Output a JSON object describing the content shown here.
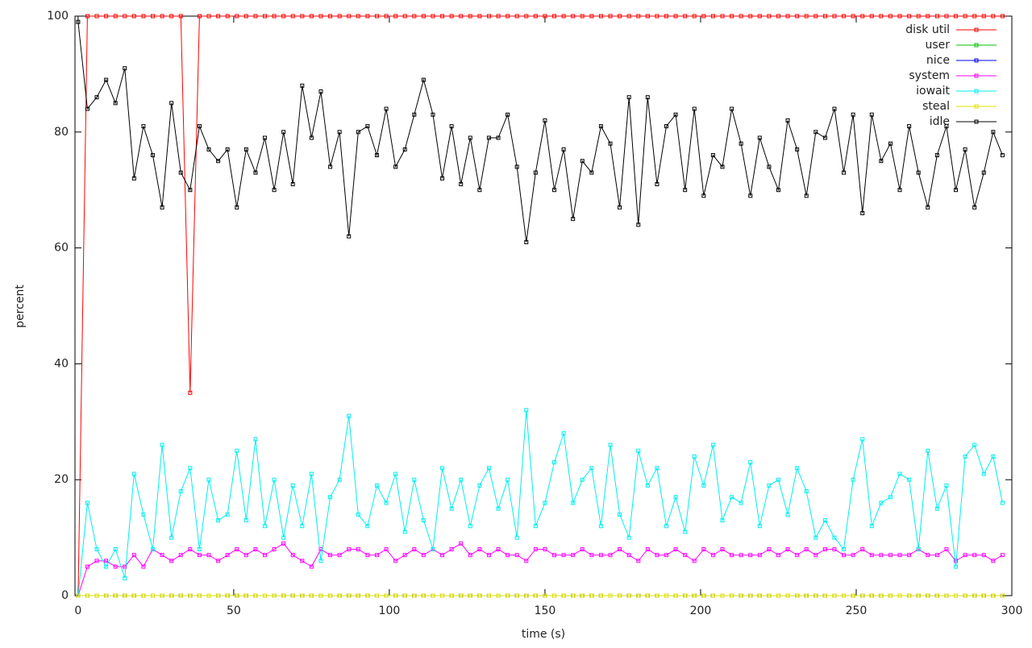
{
  "chart_data": {
    "type": "line",
    "xlabel": "time (s)",
    "ylabel": "percent",
    "xlim": [
      -1,
      300
    ],
    "xticks": [
      0,
      50,
      100,
      150,
      200,
      250,
      300
    ],
    "ylim": [
      0,
      100
    ],
    "yticks": [
      0,
      20,
      40,
      60,
      80,
      100
    ],
    "legend": "top-right",
    "x": [
      0,
      3,
      6,
      9,
      12,
      15,
      18,
      21,
      24,
      27,
      30,
      33,
      36,
      39,
      42,
      45,
      48,
      51,
      54,
      57,
      60,
      63,
      66,
      69,
      72,
      75,
      78,
      81,
      84,
      87,
      90,
      93,
      96,
      99,
      102,
      105,
      108,
      111,
      114,
      117,
      120,
      123,
      126,
      129,
      132,
      135,
      138,
      141,
      144,
      147,
      150,
      153,
      156,
      159,
      162,
      165,
      168,
      171,
      174,
      177,
      180,
      183,
      186,
      189,
      192,
      195,
      198,
      201,
      204,
      207,
      210,
      213,
      216,
      219,
      222,
      225,
      228,
      231,
      234,
      237,
      240,
      243,
      246,
      249,
      252,
      255,
      258,
      261,
      264,
      267,
      270,
      273,
      276,
      279,
      282,
      285,
      288,
      291,
      294,
      297
    ],
    "series": [
      {
        "name": "disk util",
        "color": "#ff0000",
        "values": [
          0,
          100,
          100,
          100,
          100,
          100,
          100,
          100,
          100,
          100,
          100,
          100,
          35,
          100,
          100,
          100,
          100,
          100,
          100,
          100,
          100,
          100,
          100,
          100,
          100,
          100,
          100,
          100,
          100,
          100,
          100,
          100,
          100,
          100,
          100,
          100,
          100,
          100,
          100,
          100,
          100,
          100,
          100,
          100,
          100,
          100,
          100,
          100,
          100,
          100,
          100,
          100,
          100,
          100,
          100,
          100,
          100,
          100,
          100,
          100,
          100,
          100,
          100,
          100,
          100,
          100,
          100,
          100,
          100,
          100,
          100,
          100,
          100,
          100,
          100,
          100,
          100,
          100,
          100,
          100,
          100,
          100,
          100,
          100,
          100,
          100,
          100,
          100,
          100,
          100,
          100,
          100,
          100,
          100,
          100,
          100,
          100,
          100,
          100,
          100
        ]
      },
      {
        "name": "user",
        "color": "#00c000",
        "values": [
          0,
          0,
          0,
          0,
          0,
          0,
          0,
          0,
          0,
          0,
          0,
          0,
          0,
          0,
          0,
          0,
          0,
          0,
          0,
          0,
          0,
          0,
          0,
          0,
          0,
          0,
          0,
          0,
          0,
          0,
          0,
          0,
          0,
          0,
          0,
          0,
          0,
          0,
          0,
          0,
          0,
          0,
          0,
          0,
          0,
          0,
          0,
          0,
          0,
          0,
          0,
          0,
          0,
          0,
          0,
          0,
          0,
          0,
          0,
          0,
          0,
          0,
          0,
          0,
          0,
          0,
          0,
          0,
          0,
          0,
          0,
          0,
          0,
          0,
          0,
          0,
          0,
          0,
          0,
          0,
          0,
          0,
          0,
          0,
          0,
          0,
          0,
          0,
          0,
          0,
          0,
          0,
          0,
          0,
          0,
          0,
          0,
          0,
          0,
          0
        ]
      },
      {
        "name": "nice",
        "color": "#0000ff",
        "values": [
          0,
          0,
          0,
          0,
          0,
          0,
          0,
          0,
          0,
          0,
          0,
          0,
          0,
          0,
          0,
          0,
          0,
          0,
          0,
          0,
          0,
          0,
          0,
          0,
          0,
          0,
          0,
          0,
          0,
          0,
          0,
          0,
          0,
          0,
          0,
          0,
          0,
          0,
          0,
          0,
          0,
          0,
          0,
          0,
          0,
          0,
          0,
          0,
          0,
          0,
          0,
          0,
          0,
          0,
          0,
          0,
          0,
          0,
          0,
          0,
          0,
          0,
          0,
          0,
          0,
          0,
          0,
          0,
          0,
          0,
          0,
          0,
          0,
          0,
          0,
          0,
          0,
          0,
          0,
          0,
          0,
          0,
          0,
          0,
          0,
          0,
          0,
          0,
          0,
          0,
          0,
          0,
          0,
          0,
          0,
          0,
          0,
          0,
          0,
          0
        ]
      },
      {
        "name": "system",
        "color": "#ff00ff",
        "values": [
          0,
          5,
          6,
          6,
          5,
          5,
          7,
          5,
          8,
          7,
          6,
          7,
          8,
          7,
          7,
          6,
          7,
          8,
          7,
          8,
          7,
          8,
          9,
          7,
          6,
          5,
          8,
          7,
          7,
          8,
          8,
          7,
          7,
          8,
          6,
          7,
          8,
          7,
          8,
          7,
          8,
          9,
          7,
          8,
          7,
          8,
          7,
          7,
          6,
          8,
          8,
          7,
          7,
          7,
          8,
          7,
          7,
          7,
          8,
          7,
          6,
          8,
          7,
          7,
          8,
          7,
          6,
          8,
          7,
          8,
          7,
          7,
          7,
          7,
          8,
          7,
          8,
          7,
          8,
          7,
          8,
          8,
          7,
          7,
          8,
          7,
          7,
          7,
          7,
          7,
          8,
          7,
          7,
          8,
          6,
          7,
          7,
          7,
          6,
          7
        ]
      },
      {
        "name": "iowait",
        "color": "#00eeee",
        "values": [
          0,
          16,
          8,
          5,
          8,
          3,
          21,
          14,
          8,
          26,
          10,
          18,
          22,
          8,
          20,
          13,
          14,
          25,
          13,
          27,
          12,
          20,
          10,
          19,
          12,
          21,
          6,
          17,
          20,
          31,
          14,
          12,
          19,
          16,
          21,
          11,
          20,
          13,
          8,
          22,
          15,
          20,
          12,
          19,
          22,
          15,
          20,
          10,
          32,
          12,
          16,
          23,
          28,
          16,
          20,
          22,
          12,
          26,
          14,
          10,
          25,
          19,
          22,
          12,
          17,
          11,
          24,
          19,
          26,
          13,
          17,
          16,
          23,
          12,
          19,
          20,
          14,
          22,
          18,
          10,
          13,
          10,
          8,
          20,
          27,
          12,
          16,
          17,
          21,
          20,
          8,
          25,
          15,
          19,
          5,
          24,
          26,
          21,
          24,
          16
        ]
      },
      {
        "name": "steal",
        "color": "#e0e000",
        "values": [
          0,
          0,
          0,
          0,
          0,
          0,
          0,
          0,
          0,
          0,
          0,
          0,
          0,
          0,
          0,
          0,
          0,
          0,
          0,
          0,
          0,
          0,
          0,
          0,
          0,
          0,
          0,
          0,
          0,
          0,
          0,
          0,
          0,
          0,
          0,
          0,
          0,
          0,
          0,
          0,
          0,
          0,
          0,
          0,
          0,
          0,
          0,
          0,
          0,
          0,
          0,
          0,
          0,
          0,
          0,
          0,
          0,
          0,
          0,
          0,
          0,
          0,
          0,
          0,
          0,
          0,
          0,
          0,
          0,
          0,
          0,
          0,
          0,
          0,
          0,
          0,
          0,
          0,
          0,
          0,
          0,
          0,
          0,
          0,
          0,
          0,
          0,
          0,
          0,
          0,
          0,
          0,
          0,
          0,
          0,
          0,
          0,
          0,
          0,
          0
        ]
      },
      {
        "name": "idle",
        "color": "#000000",
        "values": [
          99,
          84,
          86,
          89,
          85,
          91,
          72,
          81,
          76,
          67,
          85,
          73,
          70,
          81,
          77,
          75,
          77,
          67,
          77,
          73,
          79,
          70,
          80,
          71,
          88,
          79,
          87,
          74,
          80,
          62,
          80,
          81,
          76,
          84,
          74,
          77,
          83,
          89,
          83,
          72,
          81,
          71,
          79,
          70,
          79,
          79,
          83,
          74,
          61,
          73,
          82,
          70,
          77,
          65,
          75,
          73,
          81,
          78,
          67,
          86,
          64,
          86,
          71,
          81,
          83,
          70,
          84,
          69,
          76,
          74,
          84,
          78,
          69,
          79,
          74,
          70,
          82,
          77,
          69,
          80,
          79,
          84,
          73,
          83,
          66,
          83,
          75,
          78,
          70,
          81,
          73,
          67,
          76,
          81,
          70,
          77,
          67,
          73,
          80,
          76
        ]
      }
    ]
  }
}
